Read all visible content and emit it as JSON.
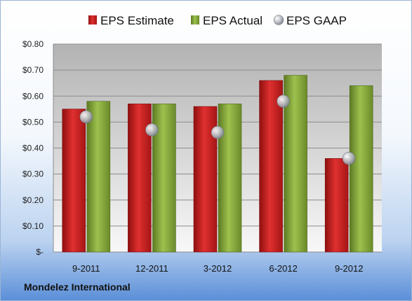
{
  "chart_data": {
    "type": "bar",
    "categories": [
      "9-2011",
      "12-2011",
      "3-2012",
      "6-2012",
      "9-2012"
    ],
    "series": [
      {
        "name": "EPS Estimate",
        "values": [
          0.55,
          0.57,
          0.56,
          0.66,
          0.36
        ],
        "color": "#cc1f1f"
      },
      {
        "name": "EPS Actual",
        "values": [
          0.58,
          0.57,
          0.57,
          0.68,
          0.64
        ],
        "color": "#86a93a"
      }
    ],
    "points": {
      "name": "EPS GAAP",
      "values": [
        0.52,
        0.47,
        0.46,
        0.58,
        0.36
      ],
      "color": "#b8bcc4"
    },
    "yticks": [
      "$-",
      "$0.10",
      "$0.20",
      "$0.30",
      "$0.40",
      "$0.50",
      "$0.60",
      "$0.70",
      "$0.80"
    ],
    "ylim": [
      0,
      0.8
    ],
    "grid": true,
    "legend_position": "top"
  },
  "footer": {
    "company": "Mondelez International"
  }
}
